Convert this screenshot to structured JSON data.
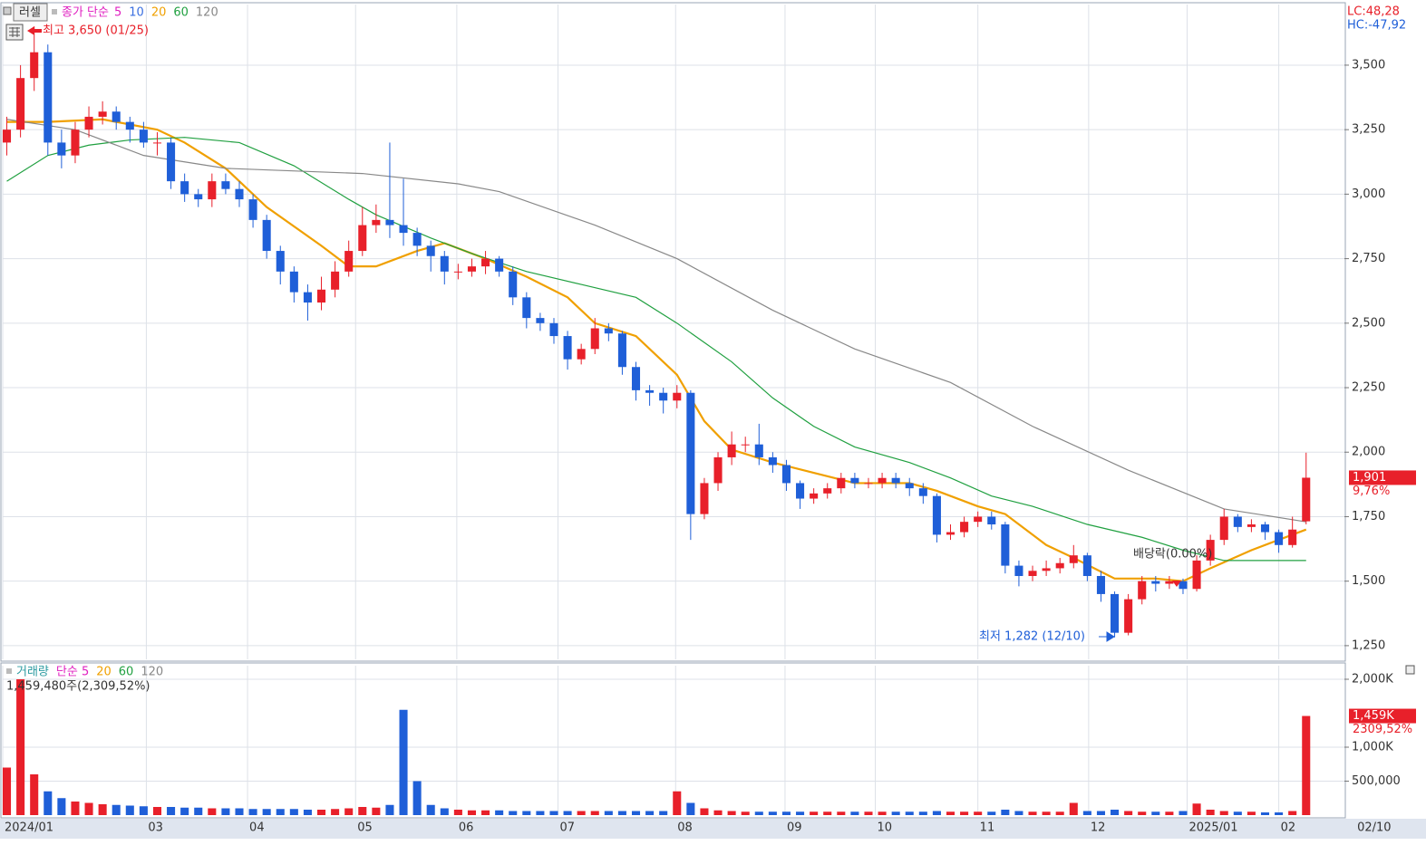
{
  "chart_data": {
    "type": "candlestick",
    "header": {
      "button": "러셀",
      "ma_label": "종가 단순",
      "lc": "LC:48,28",
      "hc": "HC:-47,92"
    },
    "ma_legend": [
      {
        "name": "5",
        "color": "#e020c0"
      },
      {
        "name": "10",
        "color": "#3a6fe0"
      },
      {
        "name": "20",
        "color": "#f0a000"
      },
      {
        "name": "60",
        "color": "#20a040"
      },
      {
        "name": "120",
        "color": "#888888"
      }
    ],
    "annotations": {
      "high": "최고 3,650 (01/25)",
      "low": "최저 1,282 (12/10)",
      "dividend": "배당락(0.00%)",
      "last_price": "1,901",
      "last_change": "9,76%"
    },
    "up_color": "#e8202a",
    "down_color": "#1f5fd8",
    "xlim": [
      -0.3,
      97.8
    ],
    "xticks": [
      {
        "value": -0.3,
        "label": "2024/01"
      },
      {
        "value": 10.2,
        "label": "03"
      },
      {
        "value": 17.6,
        "label": "04"
      },
      {
        "value": 25.5,
        "label": "05"
      },
      {
        "value": 32.9,
        "label": "06"
      },
      {
        "value": 40.3,
        "label": "07"
      },
      {
        "value": 48.9,
        "label": "08"
      },
      {
        "value": 56.9,
        "label": "09"
      },
      {
        "value": 63.5,
        "label": "10"
      },
      {
        "value": 71.0,
        "label": "11"
      },
      {
        "value": 79.1,
        "label": "12"
      },
      {
        "value": 86.3,
        "label": "2025/01"
      },
      {
        "value": 93.0,
        "label": "02"
      },
      {
        "value": 98.6,
        "label": "02/10"
      }
    ],
    "ylim": [
      1197,
      3735
    ],
    "yticks": [
      {
        "value": 3500,
        "label": "3,500"
      },
      {
        "value": 3250,
        "label": "3,250"
      },
      {
        "value": 3000,
        "label": "3,000"
      },
      {
        "value": 2750,
        "label": "2,750"
      },
      {
        "value": 2500,
        "label": "2,500"
      },
      {
        "value": 2250,
        "label": "2,250"
      },
      {
        "value": 2000,
        "label": "2,000"
      },
      {
        "value": 1750,
        "label": "1,750"
      },
      {
        "value": 1500,
        "label": "1,500"
      },
      {
        "value": 1250,
        "label": "1,250"
      }
    ],
    "grid": true,
    "open": [
      3200,
      3250,
      3450,
      3550,
      3200,
      3150,
      3250,
      3300,
      3320,
      3280,
      3250,
      3200,
      3200,
      3050,
      3000,
      2980,
      3050,
      3020,
      2980,
      2900,
      2780,
      2700,
      2620,
      2580,
      2630,
      2700,
      2780,
      2880,
      2900,
      2880,
      2850,
      2800,
      2760,
      2700,
      2700,
      2720,
      2750,
      2700,
      2600,
      2520,
      2500,
      2450,
      2360,
      2400,
      2480,
      2460,
      2330,
      2240,
      2230,
      2200,
      2230,
      1760,
      1880,
      1980,
      2030,
      2030,
      1980,
      1950,
      1880,
      1820,
      1840,
      1860,
      1900,
      1880,
      1880,
      1900,
      1880,
      1860,
      1830,
      1680,
      1690,
      1730,
      1750,
      1720,
      1560,
      1520,
      1540,
      1550,
      1570,
      1600,
      1520,
      1450,
      1300,
      1430,
      1500,
      1490,
      1500,
      1470,
      1580,
      1660,
      1750,
      1710,
      1720,
      1690,
      1640,
      1732
    ],
    "high": [
      3300,
      3500,
      3650,
      3580,
      3250,
      3280,
      3340,
      3360,
      3340,
      3300,
      3280,
      3240,
      3220,
      3080,
      3020,
      3080,
      3080,
      3050,
      3000,
      2920,
      2800,
      2720,
      2650,
      2680,
      2740,
      2820,
      2950,
      2960,
      3200,
      3060,
      2870,
      2820,
      2780,
      2730,
      2750,
      2780,
      2760,
      2720,
      2620,
      2540,
      2520,
      2470,
      2420,
      2520,
      2500,
      2470,
      2350,
      2260,
      2250,
      2260,
      2240,
      1900,
      2000,
      2080,
      2060,
      2110,
      2000,
      1970,
      1890,
      1860,
      1880,
      1920,
      1920,
      1900,
      1920,
      1920,
      1900,
      1880,
      1840,
      1720,
      1750,
      1770,
      1770,
      1730,
      1580,
      1560,
      1580,
      1590,
      1640,
      1610,
      1540,
      1460,
      1450,
      1520,
      1520,
      1520,
      1510,
      1600,
      1680,
      1780,
      1760,
      1740,
      1730,
      1700,
      1750,
      1998
    ],
    "low": [
      3150,
      3220,
      3400,
      3150,
      3100,
      3120,
      3220,
      3270,
      3250,
      3200,
      3180,
      3150,
      3020,
      2970,
      2950,
      2950,
      3000,
      2950,
      2870,
      2750,
      2650,
      2580,
      2510,
      2550,
      2600,
      2680,
      2760,
      2850,
      2830,
      2800,
      2760,
      2700,
      2650,
      2670,
      2680,
      2690,
      2680,
      2570,
      2480,
      2470,
      2420,
      2320,
      2340,
      2380,
      2430,
      2300,
      2200,
      2180,
      2150,
      2170,
      1660,
      1740,
      1850,
      1950,
      2000,
      1950,
      1920,
      1850,
      1780,
      1800,
      1820,
      1840,
      1860,
      1860,
      1860,
      1860,
      1830,
      1800,
      1650,
      1660,
      1670,
      1710,
      1700,
      1530,
      1480,
      1500,
      1520,
      1530,
      1550,
      1500,
      1420,
      1282,
      1290,
      1410,
      1460,
      1470,
      1450,
      1460,
      1560,
      1640,
      1690,
      1690,
      1660,
      1610,
      1630,
      1720
    ],
    "close": [
      3250,
      3450,
      3550,
      3200,
      3150,
      3250,
      3300,
      3320,
      3280,
      3250,
      3200,
      3200,
      3050,
      3000,
      2980,
      3050,
      3020,
      2980,
      2900,
      2780,
      2700,
      2620,
      2580,
      2630,
      2700,
      2780,
      2880,
      2900,
      2880,
      2850,
      2800,
      2760,
      2700,
      2700,
      2720,
      2750,
      2700,
      2600,
      2520,
      2500,
      2450,
      2360,
      2400,
      2480,
      2460,
      2330,
      2240,
      2230,
      2200,
      2230,
      1760,
      1880,
      1980,
      2030,
      2030,
      1980,
      1950,
      1880,
      1820,
      1840,
      1860,
      1900,
      1880,
      1880,
      1900,
      1880,
      1860,
      1830,
      1680,
      1690,
      1730,
      1750,
      1720,
      1560,
      1520,
      1540,
      1550,
      1570,
      1600,
      1520,
      1450,
      1300,
      1430,
      1500,
      1490,
      1500,
      1470,
      1580,
      1660,
      1750,
      1710,
      1720,
      1690,
      1640,
      1700,
      1901
    ],
    "series": [
      {
        "name": "20",
        "color": "#f0a000",
        "x": [
          0,
          3,
          7,
          11,
          13,
          16,
          19,
          23,
          25,
          27,
          30,
          32,
          35,
          38,
          41,
          43,
          46,
          49,
          51,
          53,
          56,
          59,
          62,
          66,
          68,
          71,
          73,
          76,
          78,
          81,
          84,
          86,
          88,
          91,
          95
        ],
        "values": [
          3280,
          3280,
          3290,
          3250,
          3200,
          3100,
          2950,
          2800,
          2720,
          2720,
          2780,
          2810,
          2750,
          2680,
          2600,
          2500,
          2450,
          2300,
          2120,
          2010,
          1960,
          1920,
          1880,
          1880,
          1850,
          1790,
          1760,
          1640,
          1590,
          1510,
          1510,
          1500,
          1550,
          1620,
          1700
        ]
      },
      {
        "name": "60",
        "color": "#20a040",
        "x": [
          0,
          3,
          6,
          9,
          13,
          17,
          21,
          25,
          27,
          31,
          34,
          38,
          42,
          46,
          49,
          53,
          56,
          59,
          62,
          66,
          69,
          72,
          75,
          79,
          83,
          86,
          89,
          95
        ],
        "values": [
          3050,
          3150,
          3190,
          3210,
          3220,
          3200,
          3110,
          2980,
          2920,
          2830,
          2770,
          2700,
          2650,
          2600,
          2500,
          2350,
          2210,
          2100,
          2020,
          1960,
          1900,
          1830,
          1790,
          1720,
          1670,
          1620,
          1580,
          1580
        ]
      },
      {
        "name": "120",
        "color": "#888888",
        "x": [
          0,
          5,
          10,
          16,
          26,
          33,
          36,
          43,
          49,
          56,
          62,
          69,
          75,
          82,
          89,
          95
        ],
        "values": [
          3290,
          3250,
          3150,
          3100,
          3080,
          3040,
          3010,
          2880,
          2750,
          2550,
          2400,
          2270,
          2100,
          1930,
          1780,
          1730
        ]
      }
    ],
    "volume": {
      "title": "거래량",
      "ma_label": "단순 5",
      "ma_names": [
        "20",
        "60",
        "120"
      ],
      "info": "1,459,480주(2,309,52%)",
      "last_label": "1,459K",
      "last_change": "2309,52%",
      "ylim": [
        0,
        2200000
      ],
      "yticks": [
        {
          "value": 2000000,
          "label": "2,000K"
        },
        {
          "value": 1000000,
          "label": "1,000K"
        },
        {
          "value": 500000,
          "label": "500,000"
        }
      ],
      "values": [
        700000,
        2000000,
        600000,
        350000,
        250000,
        200000,
        180000,
        160000,
        150000,
        140000,
        130000,
        120000,
        120000,
        110000,
        110000,
        100000,
        100000,
        100000,
        90000,
        90000,
        90000,
        90000,
        80000,
        80000,
        90000,
        100000,
        120000,
        110000,
        150000,
        1550000,
        500000,
        150000,
        100000,
        80000,
        70000,
        70000,
        70000,
        60000,
        60000,
        60000,
        60000,
        60000,
        60000,
        60000,
        60000,
        60000,
        60000,
        60000,
        60000,
        350000,
        180000,
        100000,
        70000,
        60000,
        50000,
        50000,
        50000,
        50000,
        50000,
        50000,
        50000,
        50000,
        50000,
        50000,
        50000,
        50000,
        50000,
        50000,
        60000,
        50000,
        50000,
        50000,
        50000,
        80000,
        60000,
        50000,
        50000,
        50000,
        180000,
        60000,
        60000,
        80000,
        60000,
        50000,
        50000,
        50000,
        60000,
        170000,
        80000,
        60000,
        50000,
        50000,
        40000,
        40000,
        60000,
        1459480
      ]
    }
  }
}
